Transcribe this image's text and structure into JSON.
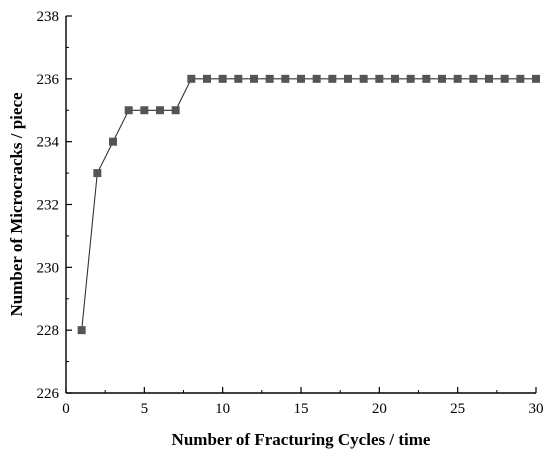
{
  "chart_data": {
    "type": "line",
    "title": "",
    "xlabel": "Number of Fracturing Cycles / time",
    "ylabel": "Number of Microcracks / piece",
    "xlim": [
      0,
      30
    ],
    "ylim": [
      226,
      238
    ],
    "xticks": [
      0,
      5,
      10,
      15,
      20,
      25,
      30
    ],
    "yticks": [
      226,
      228,
      230,
      232,
      234,
      236,
      238
    ],
    "grid": false,
    "legend": "none",
    "series": [
      {
        "marker": "square",
        "color": "#555555",
        "x": [
          1,
          2,
          3,
          4,
          5,
          6,
          7,
          8,
          9,
          10,
          11,
          12,
          13,
          14,
          15,
          16,
          17,
          18,
          19,
          20,
          21,
          22,
          23,
          24,
          25,
          26,
          27,
          28,
          29,
          30
        ],
        "y": [
          228,
          233,
          234,
          235,
          235,
          235,
          235,
          236,
          236,
          236,
          236,
          236,
          236,
          236,
          236,
          236,
          236,
          236,
          236,
          236,
          236,
          236,
          236,
          236,
          236,
          236,
          236,
          236,
          236,
          236
        ]
      }
    ]
  }
}
